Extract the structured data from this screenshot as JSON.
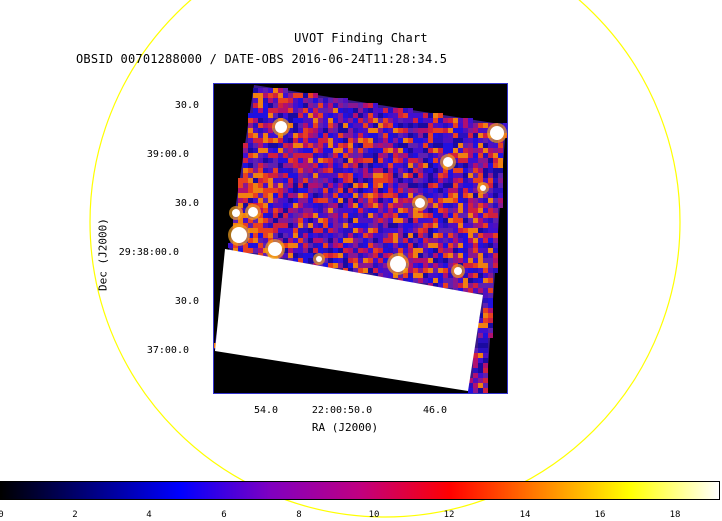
{
  "header": {
    "title": "UVOT Finding Chart",
    "subtitle": "OBSID 00701288000 / DATE-OBS 2016-06-24T11:28:34.5"
  },
  "axes": {
    "ylabel": "Dec (J2000)",
    "xlabel": "RA (J2000)",
    "yticks": [
      "30.0",
      "39:00.0",
      "30.0",
      "29:38:00.0",
      "30.0",
      "37:00.0"
    ],
    "xticks": [
      "54.0",
      "22:00:50.0",
      "46.0"
    ]
  },
  "colorbar": {
    "ticks": [
      "0",
      "2",
      "4",
      "6",
      "8",
      "10",
      "12",
      "14",
      "16",
      "18"
    ],
    "colors": [
      "#000000",
      "#000080",
      "#0000ff",
      "#8000c0",
      "#c00080",
      "#ff0000",
      "#ff8000",
      "#ffff00",
      "#ffffff"
    ]
  },
  "colors": {
    "ring": "#ffff00",
    "frame": "#3333cc",
    "saturated": "#ffffff",
    "background": "#000000"
  }
}
